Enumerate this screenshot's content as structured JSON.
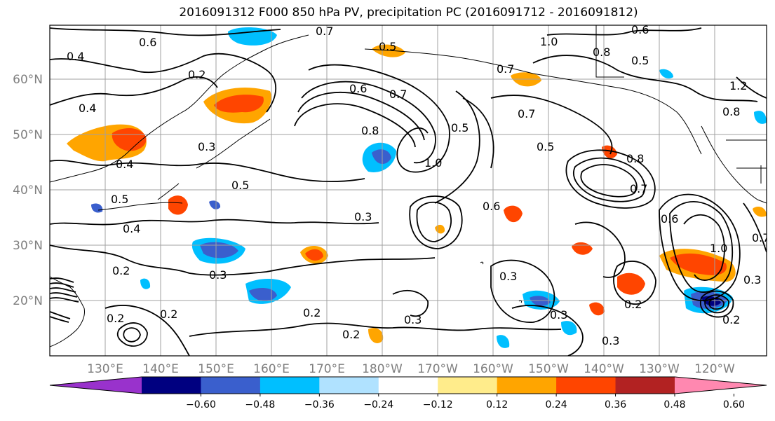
{
  "title": "2016091312 F000 850 hPa PV, precipitation PC (2016091712 - 2016091812)",
  "lat_labels": [
    "60°N",
    "50°N",
    "40°N",
    "30°N",
    "20°N"
  ],
  "lon_labels": [
    "130°E",
    "140°E",
    "150°E",
    "160°E",
    "170°E",
    "180°W",
    "170°W",
    "160°W",
    "150°W",
    "140°W",
    "130°W",
    "120°W"
  ],
  "colorbar": {
    "colors": [
      "#9932CC",
      "#000080",
      "#3A5FCD",
      "#00BFFF",
      "#B0E2FF",
      "#FFFFFF",
      "#FFEC8B",
      "#FFA500",
      "#FF4500",
      "#B22222",
      "#FF88B0"
    ],
    "tick_labels": [
      "-0.60",
      "-0.48",
      "-0.36",
      "-0.24",
      "-0.12",
      "0.12",
      "0.24",
      "0.36",
      "0.48",
      "0.60"
    ]
  },
  "pv_contour_labels": [
    "0.4",
    "0.6",
    "0.7",
    "0.2",
    "0.4",
    "0.5",
    "0.6",
    "0.7",
    "1.0",
    "0.8",
    "0.7",
    "0.5",
    "0.6",
    "0.7",
    "0.5",
    "0.8",
    "1.0",
    "0.5",
    "0.8",
    "0.7",
    "0.6",
    "0.5",
    "0.3",
    "0.4",
    "0.5",
    "0.4",
    "0.3",
    "0.2",
    "0.3",
    "0.2",
    "0.2",
    "0.3",
    "0.3",
    "0.2",
    "0.3",
    "0.3",
    "0.2",
    "0.3",
    "1.2",
    "0.8",
    "0.6",
    "1.0",
    "0.2",
    "0.7",
    "0.2"
  ]
}
